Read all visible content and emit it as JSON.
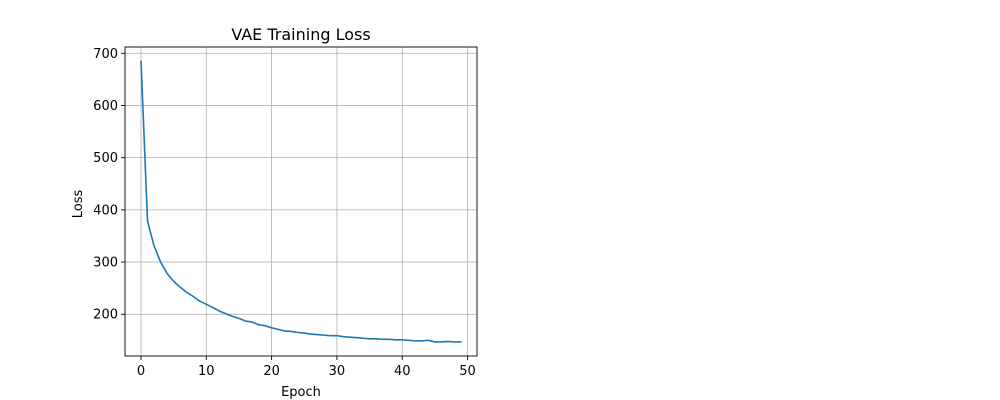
{
  "chart_data": {
    "type": "line",
    "title": "VAE Training Loss",
    "xlabel": "Epoch",
    "ylabel": "Loss",
    "xlim": [
      -2.45,
      51.45
    ],
    "ylim": [
      120,
      712
    ],
    "xticks": [
      0,
      10,
      20,
      30,
      40,
      50
    ],
    "yticks": [
      200,
      300,
      400,
      500,
      600,
      700
    ],
    "grid": true,
    "colors": {
      "line": "#1f77b4",
      "grid": "#b0b0b0",
      "axes": "#000000"
    },
    "series": [
      {
        "x": [
          0,
          1,
          2,
          3,
          4,
          5,
          6,
          7,
          8,
          9,
          10,
          11,
          12,
          13,
          14,
          15,
          16,
          17,
          18,
          19,
          20,
          21,
          22,
          23,
          24,
          25,
          26,
          27,
          28,
          29,
          30,
          31,
          32,
          33,
          34,
          35,
          36,
          37,
          38,
          39,
          40,
          41,
          42,
          43,
          44,
          45,
          46,
          47,
          48,
          49
        ],
        "values": [
          685,
          378,
          331,
          300,
          278,
          263,
          252,
          242,
          234,
          225,
          219,
          213,
          206,
          201,
          196,
          192,
          187,
          185,
          180,
          178,
          174,
          171,
          168,
          167,
          165,
          164,
          162,
          161,
          160,
          159,
          159,
          157,
          156,
          155,
          154,
          153,
          153,
          152,
          152,
          151,
          151,
          150,
          149,
          149,
          150,
          147,
          147,
          148,
          147,
          147
        ]
      }
    ]
  }
}
